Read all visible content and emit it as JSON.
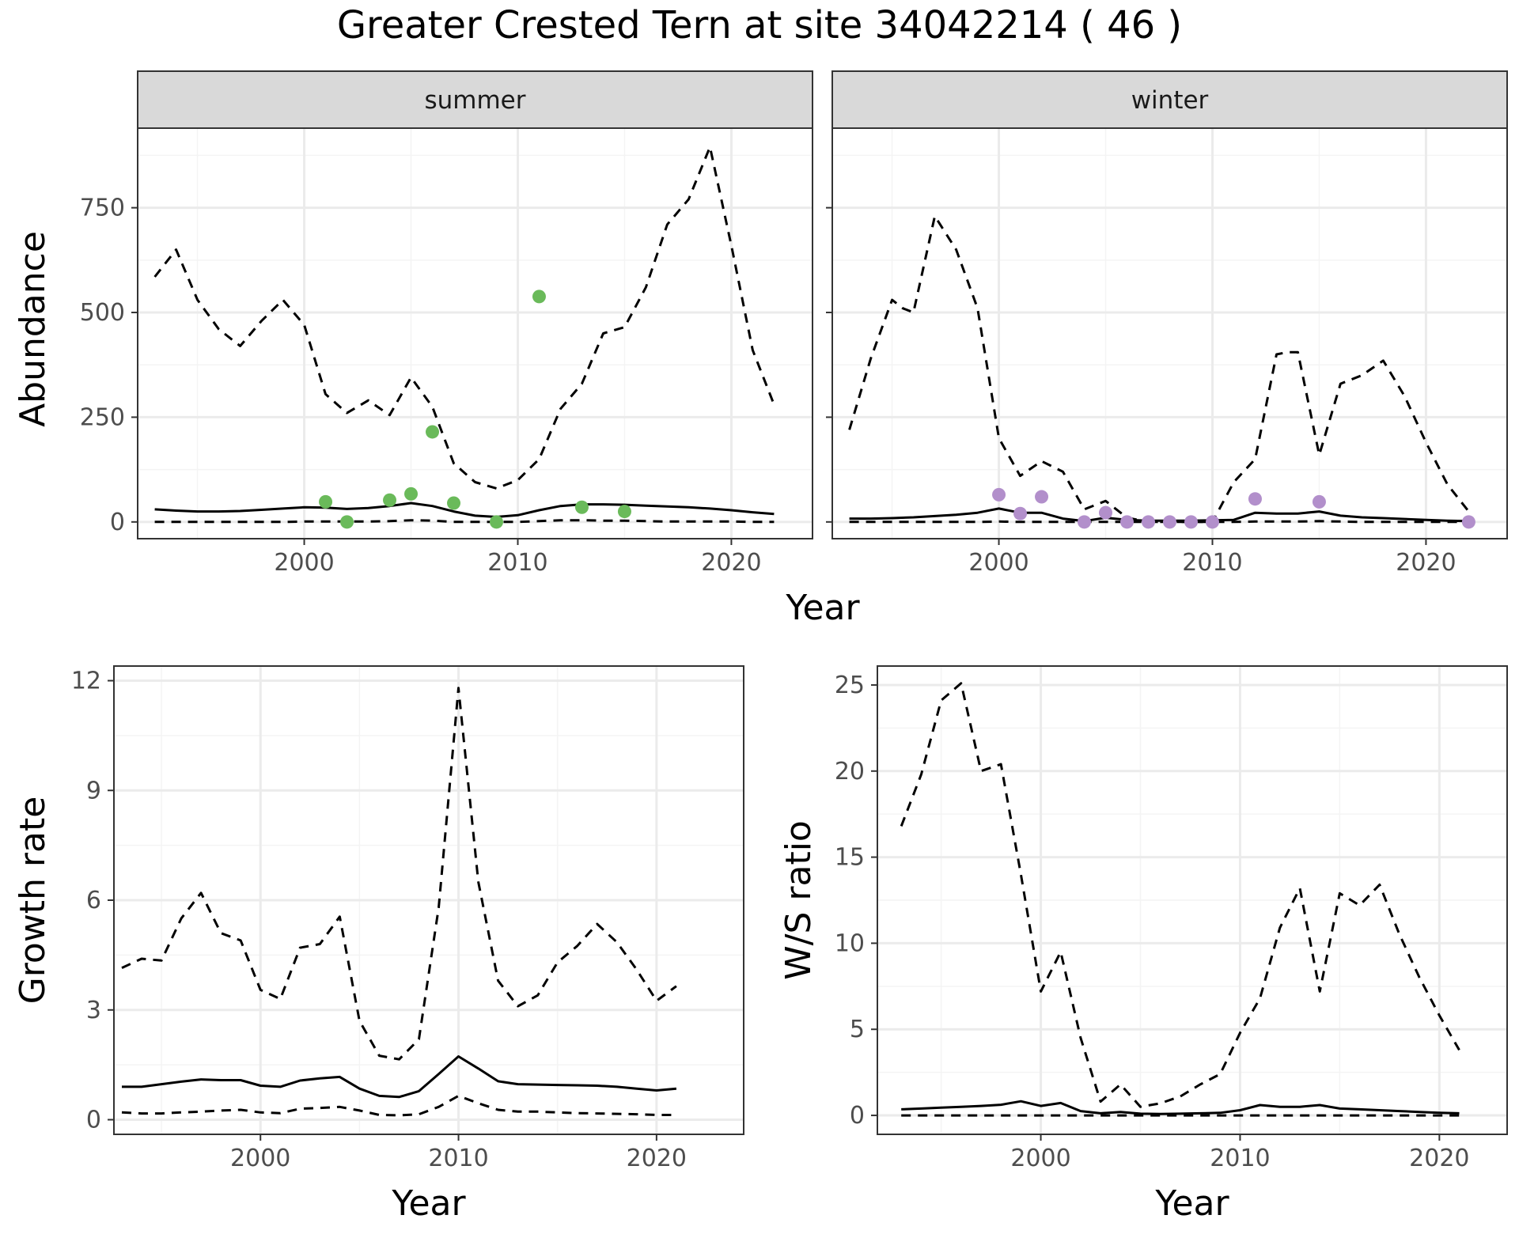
{
  "title": "Greater Crested Tern at site 34042214 ( 46 )",
  "colors": {
    "summer_points": "#6aba5a",
    "winter_points": "#b28fcb",
    "lines": "#000000",
    "grid_major": "#ebebeb",
    "grid_minor": "#f4f4f4",
    "strip_fill": "#d9d9d9",
    "panel_border": "#333333"
  },
  "chart_data": [
    {
      "type": "line",
      "facet": "summer",
      "strip_label": "summer",
      "xlabel": "Year",
      "ylabel": "Abundance",
      "xlim": [
        1992.2,
        2023.8
      ],
      "ylim": [
        -40,
        940
      ],
      "x_ticks": [
        2000,
        2010,
        2020
      ],
      "x_tick_labels": [
        "2000",
        "2010",
        "2020"
      ],
      "y_ticks": [
        0,
        250,
        500,
        750
      ],
      "y_tick_labels": [
        "0",
        "250",
        "500",
        "750"
      ],
      "grid": true,
      "series": [
        {
          "style": "dashed",
          "x": [
            1993,
            1994,
            1995,
            1996,
            1997,
            1998,
            1999,
            2000,
            2001,
            2002,
            2003,
            2004,
            2005,
            2006,
            2007,
            2008,
            2009,
            2010,
            2011,
            2012,
            2013,
            2014,
            2015,
            2016,
            2017,
            2018,
            2019,
            2020,
            2021,
            2022
          ],
          "y": [
            585,
            650,
            530,
            460,
            420,
            480,
            530,
            470,
            305,
            260,
            290,
            255,
            345,
            275,
            140,
            95,
            80,
            100,
            150,
            270,
            330,
            450,
            465,
            560,
            710,
            770,
            895,
            660,
            410,
            280
          ]
        },
        {
          "style": "solid",
          "x": [
            1993,
            1994,
            1995,
            1996,
            1997,
            1998,
            1999,
            2000,
            2001,
            2002,
            2003,
            2004,
            2005,
            2006,
            2007,
            2008,
            2009,
            2010,
            2011,
            2012,
            2013,
            2014,
            2015,
            2016,
            2017,
            2018,
            2019,
            2020,
            2021,
            2022
          ],
          "y": [
            30,
            27,
            25,
            25,
            26,
            29,
            32,
            35,
            34,
            31,
            33,
            38,
            45,
            38,
            25,
            15,
            12,
            16,
            28,
            38,
            42,
            42,
            41,
            39,
            37,
            35,
            32,
            28,
            23,
            19
          ]
        },
        {
          "style": "dashed",
          "x": [
            1993,
            1994,
            1995,
            1996,
            1997,
            1998,
            1999,
            2000,
            2001,
            2002,
            2003,
            2004,
            2005,
            2006,
            2007,
            2008,
            2009,
            2010,
            2011,
            2012,
            2013,
            2014,
            2015,
            2016,
            2017,
            2018,
            2019,
            2020,
            2021,
            2022
          ],
          "y": [
            0,
            0,
            0,
            0,
            0,
            0,
            0,
            1,
            1,
            1,
            1,
            2,
            4,
            3,
            0,
            0,
            0,
            0,
            2,
            4,
            4,
            3,
            3,
            2,
            1,
            1,
            1,
            1,
            0,
            0
          ]
        }
      ],
      "points": {
        "x": [
          2001,
          2002,
          2004,
          2005,
          2006,
          2007,
          2009,
          2011,
          2013,
          2015
        ],
        "y": [
          48,
          0,
          52,
          67,
          215,
          45,
          0,
          538,
          35,
          25
        ]
      }
    },
    {
      "type": "line",
      "facet": "winter",
      "strip_label": "winter",
      "xlabel": "Year",
      "ylabel": "Abundance",
      "xlim": [
        1992.2,
        2023.8
      ],
      "ylim": [
        -40,
        940
      ],
      "x_ticks": [
        2000,
        2010,
        2020
      ],
      "x_tick_labels": [
        "2000",
        "2010",
        "2020"
      ],
      "y_ticks": [
        0,
        250,
        500,
        750
      ],
      "grid": true,
      "series": [
        {
          "style": "dashed",
          "x": [
            1993,
            1994,
            1995,
            1995.5,
            1996,
            1997,
            1998,
            1999,
            2000,
            2001,
            2002,
            2003,
            2004,
            2005,
            2006,
            2007,
            2008,
            2009,
            2010,
            2011,
            2012,
            2013,
            2013.5,
            2014,
            2015,
            2016,
            2017,
            2018,
            2019,
            2020,
            2021,
            2022
          ],
          "y": [
            220,
            390,
            530,
            510,
            500,
            730,
            650,
            510,
            200,
            110,
            145,
            120,
            30,
            50,
            10,
            0,
            0,
            0,
            0,
            95,
            150,
            400,
            405,
            405,
            160,
            330,
            350,
            385,
            300,
            190,
            90,
            25
          ]
        },
        {
          "style": "solid",
          "x": [
            1993,
            1994,
            1995,
            1996,
            1997,
            1998,
            1999,
            2000,
            2001,
            2002,
            2003,
            2004,
            2005,
            2006,
            2007,
            2008,
            2009,
            2010,
            2011,
            2012,
            2013,
            2014,
            2015,
            2016,
            2017,
            2018,
            2019,
            2020,
            2021,
            2022
          ],
          "y": [
            8,
            8,
            9,
            11,
            14,
            17,
            22,
            32,
            22,
            22,
            8,
            2,
            10,
            5,
            3,
            3,
            3,
            4,
            5,
            22,
            20,
            20,
            25,
            15,
            11,
            9,
            7,
            5,
            3,
            2
          ]
        },
        {
          "style": "dashed",
          "x": [
            1993,
            1994,
            1995,
            1996,
            1997,
            1998,
            1999,
            2000,
            2001,
            2002,
            2003,
            2004,
            2005,
            2006,
            2007,
            2008,
            2009,
            2010,
            2011,
            2012,
            2013,
            2014,
            2015,
            2016,
            2017,
            2018,
            2019,
            2020,
            2021,
            2022
          ],
          "y": [
            0,
            0,
            0,
            0,
            0,
            0,
            0,
            1,
            0,
            0,
            0,
            0,
            0,
            0,
            0,
            0,
            0,
            0,
            0,
            1,
            1,
            1,
            2,
            1,
            0,
            0,
            0,
            0,
            0,
            0
          ]
        }
      ],
      "points": {
        "x": [
          2000,
          2001,
          2002,
          2004,
          2005,
          2006,
          2007,
          2008,
          2009,
          2010,
          2012,
          2015,
          2022
        ],
        "y": [
          65,
          20,
          60,
          0,
          22,
          0,
          0,
          0,
          0,
          0,
          55,
          48,
          0
        ]
      }
    },
    {
      "type": "line",
      "xlabel": "Year",
      "ylabel": "Growth rate",
      "xlim": [
        1992.6,
        2024.4
      ],
      "ylim": [
        -0.4,
        12.4
      ],
      "x_ticks": [
        2000,
        2010,
        2020
      ],
      "x_tick_labels": [
        "2000",
        "2010",
        "2020"
      ],
      "y_ticks": [
        0,
        3,
        6,
        9,
        12
      ],
      "y_tick_labels": [
        "0",
        "3",
        "6",
        "9",
        "12"
      ],
      "grid": true,
      "series": [
        {
          "style": "dashed",
          "x": [
            1993,
            1994,
            1995,
            1996,
            1997,
            1998,
            1999,
            2000,
            2001,
            2002,
            2003,
            2004,
            2005,
            2006,
            2007,
            2008,
            2009,
            2010,
            2011,
            2012,
            2013,
            2014,
            2015,
            2016,
            2017,
            2018,
            2019,
            2020,
            2021
          ],
          "y": [
            4.15,
            4.4,
            4.35,
            5.5,
            6.2,
            5.1,
            4.9,
            3.55,
            3.3,
            4.7,
            4.8,
            5.55,
            2.7,
            1.75,
            1.65,
            2.2,
            5.8,
            11.8,
            6.5,
            3.8,
            3.1,
            3.4,
            4.3,
            4.75,
            5.35,
            4.85,
            4.1,
            3.25,
            3.65
          ]
        },
        {
          "style": "solid",
          "x": [
            1993,
            1994,
            1995,
            1996,
            1997,
            1998,
            1999,
            2000,
            2001,
            2002,
            2003,
            2004,
            2005,
            2006,
            2007,
            2008,
            2009,
            2010,
            2011,
            2012,
            2013,
            2014,
            2015,
            2016,
            2017,
            2018,
            2019,
            2020,
            2021
          ],
          "y": [
            0.9,
            0.9,
            0.97,
            1.04,
            1.1,
            1.08,
            1.08,
            0.93,
            0.9,
            1.07,
            1.13,
            1.17,
            0.85,
            0.65,
            0.62,
            0.78,
            1.25,
            1.73,
            1.4,
            1.05,
            0.97,
            0.96,
            0.95,
            0.94,
            0.93,
            0.9,
            0.85,
            0.8,
            0.85
          ]
        },
        {
          "style": "dashed",
          "x": [
            1993,
            1994,
            1995,
            1996,
            1997,
            1998,
            1999,
            2000,
            2001,
            2002,
            2003,
            2004,
            2005,
            2006,
            2007,
            2008,
            2009,
            2010,
            2011,
            2012,
            2013,
            2014,
            2015,
            2016,
            2017,
            2018,
            2019,
            2020,
            2021
          ],
          "y": [
            0.2,
            0.17,
            0.17,
            0.2,
            0.22,
            0.25,
            0.27,
            0.2,
            0.18,
            0.3,
            0.32,
            0.35,
            0.25,
            0.13,
            0.12,
            0.15,
            0.35,
            0.65,
            0.45,
            0.27,
            0.22,
            0.22,
            0.2,
            0.18,
            0.17,
            0.16,
            0.15,
            0.13,
            0.13
          ]
        }
      ]
    },
    {
      "type": "line",
      "xlabel": "Year",
      "ylabel": "W/S ratio",
      "xlim": [
        1991.8,
        2023.4
      ],
      "ylim": [
        -1.1,
        26.1
      ],
      "x_ticks": [
        2000,
        2010,
        2020
      ],
      "x_tick_labels": [
        "2000",
        "2010",
        "2020"
      ],
      "y_ticks": [
        0,
        5,
        10,
        15,
        20,
        25
      ],
      "y_tick_labels": [
        "0",
        "5",
        "10",
        "15",
        "20",
        "25"
      ],
      "grid": true,
      "series": [
        {
          "style": "dashed",
          "x": [
            1993,
            1994,
            1995,
            1996,
            1997,
            1998,
            1999,
            2000,
            2001,
            2002,
            2003,
            2004,
            2005,
            2006,
            2007,
            2008,
            2009,
            2010,
            2011,
            2012,
            2013,
            2014,
            2015,
            2016,
            2017,
            2018,
            2019,
            2020,
            2021
          ],
          "y": [
            16.8,
            19.8,
            24.1,
            25.1,
            20.0,
            20.4,
            14.0,
            7.2,
            9.5,
            4.5,
            0.8,
            1.8,
            0.5,
            0.7,
            1.1,
            1.8,
            2.4,
            4.8,
            6.8,
            10.9,
            13.2,
            7.2,
            12.9,
            12.2,
            13.4,
            10.5,
            8.0,
            5.8,
            3.8
          ]
        },
        {
          "style": "solid",
          "x": [
            1993,
            1994,
            1995,
            1996,
            1997,
            1998,
            1999,
            2000,
            2001,
            2002,
            2003,
            2004,
            2005,
            2006,
            2007,
            2008,
            2009,
            2010,
            2011,
            2012,
            2013,
            2014,
            2015,
            2016,
            2017,
            2018,
            2019,
            2020,
            2021
          ],
          "y": [
            0.35,
            0.4,
            0.45,
            0.5,
            0.55,
            0.62,
            0.82,
            0.55,
            0.72,
            0.25,
            0.12,
            0.2,
            0.1,
            0.08,
            0.1,
            0.12,
            0.15,
            0.3,
            0.6,
            0.5,
            0.5,
            0.6,
            0.4,
            0.35,
            0.3,
            0.25,
            0.2,
            0.15,
            0.12
          ]
        },
        {
          "style": "dashed",
          "x": [
            1993,
            1994,
            1995,
            1996,
            1997,
            1998,
            1999,
            2000,
            2001,
            2002,
            2003,
            2004,
            2005,
            2006,
            2007,
            2008,
            2009,
            2010,
            2011,
            2012,
            2013,
            2014,
            2015,
            2016,
            2017,
            2018,
            2019,
            2020,
            2021
          ],
          "y": [
            0,
            0,
            0,
            0,
            0,
            0,
            0,
            0,
            0,
            0,
            0,
            0,
            0,
            0,
            0,
            0,
            0,
            0,
            0,
            0,
            0,
            0,
            0,
            0,
            0,
            0,
            0,
            0,
            0
          ]
        }
      ]
    }
  ]
}
